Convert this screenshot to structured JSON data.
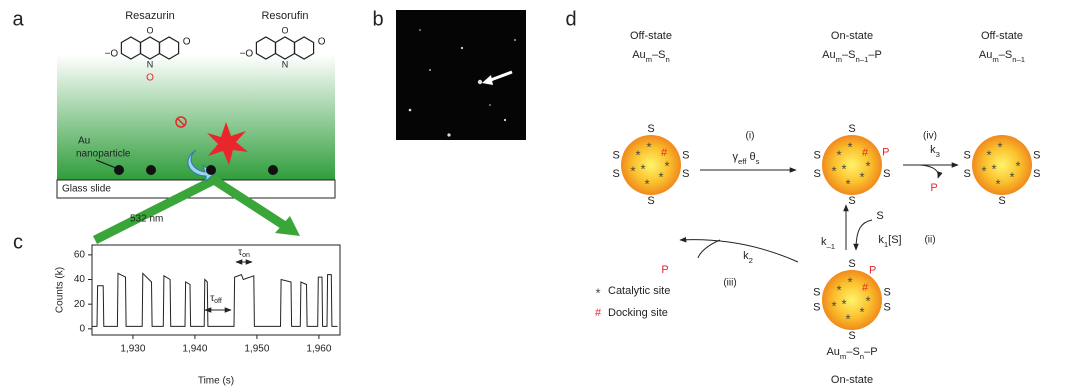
{
  "panel_a": {
    "letter": "a",
    "molecules": [
      {
        "name": "Resazurin",
        "atoms": [
          "−O",
          "O",
          "O",
          "N",
          "O"
        ]
      },
      {
        "name": "Resorufin",
        "atoms": [
          "−O",
          "O",
          "O",
          "N"
        ]
      }
    ],
    "particle_label": [
      "Au",
      "nanoparticle"
    ],
    "substrate": "Glass slide",
    "laser": "532 nm"
  },
  "panel_b": {
    "letter": "b"
  },
  "panel_c": {
    "letter": "c"
  },
  "chart_data": {
    "type": "line",
    "xlabel": "Time (s)",
    "ylabel": "Counts (k)",
    "color": "#222222",
    "annotations": [
      [
        "τ",
        {
          "sub": "off"
        }
      ],
      [
        "τ",
        {
          "sub": "on"
        }
      ]
    ],
    "x": [
      1923.4,
      1924.2,
      1924.3,
      1925.2,
      1925.3,
      1927.5,
      1927.6,
      1928.8,
      1928.9,
      1931.5,
      1931.6,
      1933.0,
      1933.1,
      1934.9,
      1935.0,
      1936.0,
      1936.1,
      1938.4,
      1938.5,
      1939.2,
      1939.3,
      1941.5,
      1941.6,
      1942.0,
      1942.1,
      1946.3,
      1946.4,
      1947.5,
      1947.8,
      1949.5,
      1949.6,
      1953.8,
      1953.9,
      1955.5,
      1955.6,
      1957.0,
      1957.1,
      1958.0,
      1958.1,
      1959.8,
      1959.9,
      1960.5,
      1960.6,
      1961.3,
      1961.4,
      1962.0,
      1962.1,
      1963.0
    ],
    "values": [
      2,
      2,
      35,
      35,
      2,
      2,
      45,
      42,
      2,
      2,
      45,
      38,
      2,
      2,
      43,
      40,
      2,
      2,
      38,
      36,
      2,
      2,
      40,
      38,
      2,
      2,
      42,
      44,
      40,
      43,
      2,
      2,
      40,
      38,
      2,
      2,
      38,
      36,
      2,
      2,
      42,
      42,
      2,
      2,
      44,
      44,
      2,
      2
    ],
    "xlim": [
      1923.4,
      1963.4
    ],
    "ylim": [
      -5,
      68
    ],
    "xticks": [
      {
        "value": 1930,
        "label": "1,930"
      },
      {
        "value": 1940,
        "label": "1,940"
      },
      {
        "value": 1950,
        "label": "1,950"
      },
      {
        "value": 1960,
        "label": "1,960"
      }
    ],
    "yticks": [
      0,
      20,
      40,
      60
    ]
  },
  "panel_d": {
    "letter": "d",
    "product_color": "#e8262b",
    "states": [
      {
        "title": "Off-state",
        "formula": [
          "Au",
          {
            "sub": "m"
          },
          "–S",
          {
            "sub": "n"
          }
        ],
        "sites": [
          "S",
          "S",
          "S",
          "S",
          "S",
          "S"
        ]
      },
      {
        "title": "On-state",
        "formula": [
          "Au",
          {
            "sub": "m"
          },
          "–S",
          {
            "sub": "n–1"
          },
          "–P"
        ],
        "sites": [
          "S",
          "P",
          "S",
          "S",
          "S",
          "S"
        ]
      },
      {
        "title": "Off-state",
        "formula": [
          "Au",
          {
            "sub": "m"
          },
          "–S",
          {
            "sub": "n–1"
          }
        ],
        "sites": [
          "S",
          "S",
          "S",
          "S",
          "S"
        ]
      },
      {
        "title": "On-state",
        "formula": [
          "Au",
          {
            "sub": "m"
          },
          "–S",
          {
            "sub": "n"
          },
          "–P"
        ],
        "sites": [
          "S",
          "P",
          "S",
          "S",
          "S",
          "S",
          "S"
        ]
      }
    ],
    "steps": [
      {
        "label": "(i)",
        "rate": [
          "γ",
          {
            "sub": "eff"
          },
          " θ",
          {
            "sub": "s"
          }
        ]
      },
      {
        "label": "(ii)",
        "rate": [
          "k",
          {
            "sub": "1"
          },
          "[S]"
        ],
        "rate_back": [
          "k",
          {
            "sub": "–1"
          }
        ],
        "reactant": "S"
      },
      {
        "label": "(iii)",
        "rate": [
          "k",
          {
            "sub": "2"
          }
        ],
        "product": "P"
      },
      {
        "label": "(iv)",
        "rate": [
          "k",
          {
            "sub": "3"
          }
        ],
        "product": "P"
      }
    ],
    "legend": [
      {
        "symbol": "*",
        "text": "Catalytic site"
      },
      {
        "symbol": "#",
        "text": "Docking site"
      }
    ]
  }
}
